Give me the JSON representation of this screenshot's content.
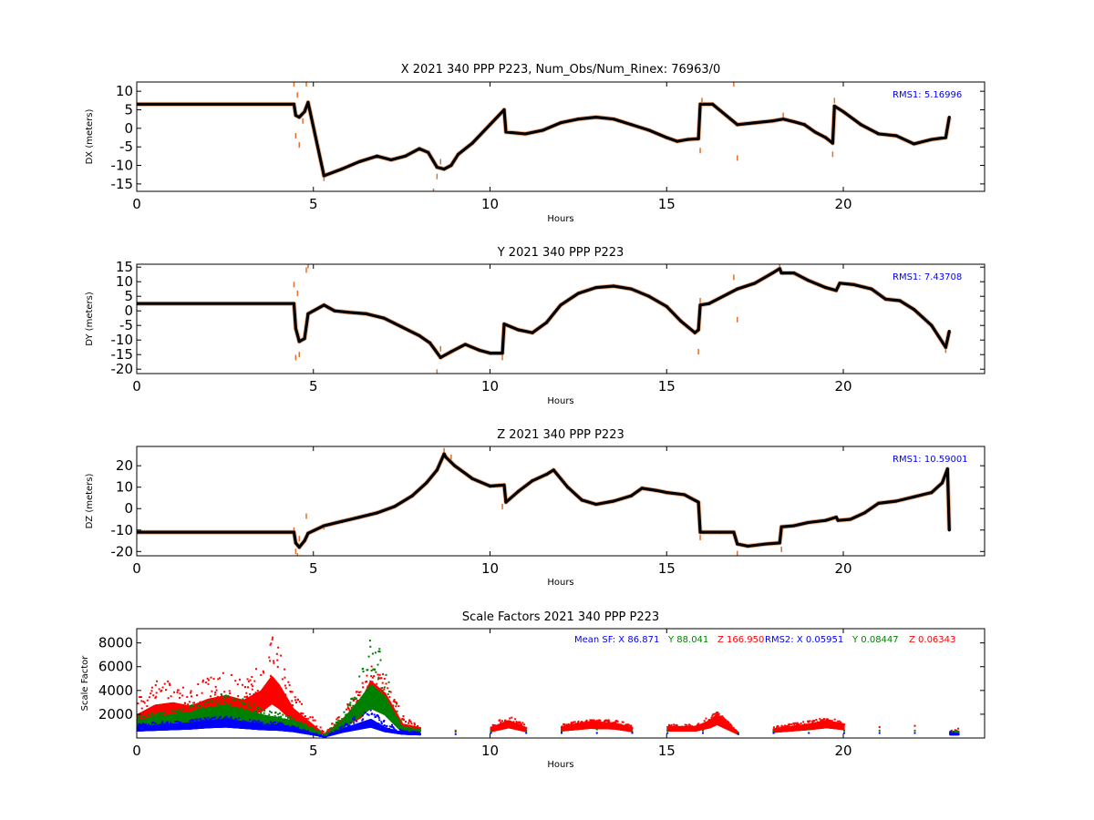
{
  "chart_data": [
    {
      "type": "scatter",
      "title": "X 2021 340 PPP  P223, Num_Obs/Num_Rinex: 76963/0",
      "xlabel": "Hours",
      "ylabel": "DX (meters)",
      "xlim": [
        0,
        24
      ],
      "ylim": [
        -17,
        12.5
      ],
      "xticks": [
        0,
        5,
        10,
        15,
        20
      ],
      "yticks": [
        10,
        5,
        0,
        -5,
        -10,
        -15
      ],
      "annotations": [
        {
          "text": "RMS1:  5.16996",
          "color": "#0000ff",
          "position": "top-right"
        }
      ],
      "series": [
        {
          "role": "fit",
          "color": "#000000",
          "x": [
            0.0,
            4.45,
            4.5,
            4.6,
            4.75,
            4.85,
            5.3,
            5.8,
            6.3,
            6.8,
            7.2,
            7.6,
            8.0,
            8.25,
            8.5,
            8.7,
            8.9,
            9.1,
            9.5,
            10.0,
            10.4,
            10.45,
            11.0,
            11.5,
            12.0,
            12.5,
            13.0,
            13.5,
            14.0,
            14.5,
            15.0,
            15.3,
            15.6,
            15.9,
            15.95,
            16.3,
            17.0,
            17.5,
            18.0,
            18.3,
            18.6,
            18.9,
            19.2,
            19.5,
            19.7,
            19.75,
            20.0,
            20.5,
            21.0,
            21.5,
            22.0,
            22.5,
            22.9,
            23.0
          ],
          "y": [
            6.5,
            6.5,
            3.5,
            3.0,
            4.5,
            7.0,
            -12.8,
            -11.0,
            -9.0,
            -7.5,
            -8.5,
            -7.5,
            -5.5,
            -6.5,
            -10.5,
            -11.0,
            -10.0,
            -7.0,
            -4.0,
            1.0,
            5.0,
            -1.0,
            -1.5,
            -0.5,
            1.5,
            2.5,
            3.0,
            2.5,
            1.0,
            -0.5,
            -2.5,
            -3.5,
            -3.0,
            -2.8,
            6.5,
            6.5,
            1.0,
            1.5,
            2.0,
            2.5,
            1.8,
            1.0,
            -1.0,
            -2.5,
            -4.0,
            6.0,
            4.5,
            1.0,
            -1.5,
            -2.0,
            -4.2,
            -3.0,
            -2.5,
            3.0
          ]
        },
        {
          "role": "obs",
          "color": "#e0702a",
          "x": [
            4.45,
            4.5,
            4.55,
            4.6,
            4.7,
            4.8,
            5.3,
            8.4,
            8.5,
            8.6,
            15.95,
            16.0,
            16.9,
            17.0,
            18.3,
            19.7,
            19.75
          ],
          "y": [
            12.0,
            -2.0,
            9.0,
            -4.5,
            2.0,
            12.0,
            -13.5,
            -17.0,
            -13.0,
            -9.0,
            -6.0,
            7.5,
            12.0,
            -8.0,
            3.5,
            -7.0,
            7.5
          ]
        }
      ]
    },
    {
      "type": "scatter",
      "title": "Y 2021 340 PPP  P223",
      "xlabel": "Hours",
      "ylabel": "DY (meters)",
      "xlim": [
        0,
        24
      ],
      "ylim": [
        -21.5,
        16
      ],
      "xticks": [
        0,
        5,
        10,
        15,
        20
      ],
      "yticks": [
        15,
        10,
        5,
        0,
        -5,
        -10,
        -15,
        -20
      ],
      "annotations": [
        {
          "text": "RMS1:  7.43708",
          "color": "#0000ff",
          "position": "top-right"
        }
      ],
      "series": [
        {
          "role": "fit",
          "color": "#000000",
          "x": [
            0.0,
            4.45,
            4.5,
            4.6,
            4.75,
            4.85,
            5.3,
            5.6,
            6.0,
            6.5,
            7.0,
            7.5,
            8.0,
            8.3,
            8.6,
            8.9,
            9.3,
            9.7,
            10.0,
            10.35,
            10.4,
            10.8,
            11.2,
            11.6,
            12.0,
            12.5,
            13.0,
            13.5,
            14.0,
            14.5,
            15.0,
            15.4,
            15.8,
            15.9,
            15.95,
            16.2,
            17.0,
            17.5,
            18.0,
            18.2,
            18.25,
            18.6,
            19.0,
            19.5,
            19.8,
            19.9,
            20.3,
            20.8,
            21.2,
            21.6,
            22.0,
            22.5,
            22.9,
            23.0
          ],
          "y": [
            2.5,
            2.5,
            -6.0,
            -10.5,
            -9.5,
            -1.0,
            2.0,
            0.0,
            -0.5,
            -1.0,
            -2.5,
            -5.5,
            -8.5,
            -11.0,
            -16.0,
            -14.0,
            -11.5,
            -13.5,
            -14.5,
            -14.5,
            -4.5,
            -6.5,
            -7.5,
            -4.0,
            2.0,
            6.0,
            8.0,
            8.5,
            7.5,
            5.0,
            1.5,
            -3.5,
            -7.5,
            -6.5,
            2.0,
            2.5,
            7.5,
            9.5,
            13.0,
            14.5,
            13.0,
            13.0,
            10.5,
            8.0,
            7.0,
            9.5,
            9.0,
            7.5,
            4.0,
            3.5,
            0.5,
            -5.0,
            -12.5,
            -7.0
          ]
        },
        {
          "role": "obs",
          "color": "#e0702a",
          "x": [
            4.45,
            4.5,
            4.55,
            4.6,
            4.8,
            4.85,
            8.5,
            8.6,
            10.35,
            15.9,
            15.95,
            16.9,
            17.0,
            18.2,
            22.9
          ],
          "y": [
            9.0,
            -16.0,
            6.0,
            -15.0,
            14.0,
            15.5,
            -21.0,
            -13.0,
            -16.0,
            -14.0,
            3.5,
            11.5,
            -3.0,
            15.0,
            -13.5
          ]
        }
      ]
    },
    {
      "type": "scatter",
      "title": "Z 2021 340 PPP  P223",
      "xlabel": "Hours",
      "ylabel": "DZ (meters)",
      "xlim": [
        0,
        24
      ],
      "ylim": [
        -22,
        29
      ],
      "xticks": [
        0,
        5,
        10,
        15,
        20
      ],
      "yticks": [
        20,
        10,
        0,
        -10,
        -20
      ],
      "annotations": [
        {
          "text": "RMS1: 10.59001",
          "color": "#0000ff",
          "position": "top-right"
        }
      ],
      "series": [
        {
          "role": "fit",
          "color": "#000000",
          "x": [
            0.0,
            4.45,
            4.5,
            4.6,
            4.75,
            4.85,
            5.3,
            5.8,
            6.3,
            6.8,
            7.3,
            7.8,
            8.2,
            8.5,
            8.7,
            8.75,
            9.0,
            9.5,
            10.0,
            10.4,
            10.45,
            10.8,
            11.2,
            11.6,
            11.8,
            12.2,
            12.6,
            13.0,
            13.5,
            14.0,
            14.3,
            14.7,
            15.0,
            15.5,
            15.9,
            15.95,
            16.5,
            16.9,
            17.0,
            17.3,
            17.8,
            18.2,
            18.25,
            18.6,
            19.0,
            19.5,
            19.8,
            19.85,
            20.2,
            20.6,
            21.0,
            21.5,
            22.0,
            22.5,
            22.8,
            22.95,
            23.0
          ],
          "y": [
            -11.0,
            -11.0,
            -16.0,
            -18.0,
            -15.0,
            -11.5,
            -8.0,
            -6.0,
            -4.0,
            -2.0,
            1.0,
            6.0,
            12.0,
            18.0,
            25.5,
            24.0,
            20.0,
            14.0,
            10.5,
            11.0,
            3.0,
            8.0,
            13.0,
            16.0,
            18.0,
            10.0,
            4.0,
            2.0,
            3.5,
            6.0,
            9.5,
            8.5,
            7.5,
            6.5,
            3.0,
            -11.0,
            -11.0,
            -11.0,
            -16.5,
            -17.5,
            -16.5,
            -16.0,
            -8.5,
            -8.0,
            -6.5,
            -5.5,
            -4.0,
            -5.5,
            -5.0,
            -2.0,
            2.5,
            3.5,
            5.5,
            7.5,
            12.0,
            18.5,
            -10.0
          ]
        },
        {
          "role": "obs",
          "color": "#e0702a",
          "x": [
            4.45,
            4.5,
            4.55,
            4.6,
            4.8,
            5.3,
            8.7,
            8.9,
            10.35,
            15.95,
            17.0,
            18.25
          ],
          "y": [
            -10.0,
            -20.0,
            -22.0,
            -14.0,
            -3.5,
            -8.5,
            27.0,
            24.0,
            1.0,
            -13.5,
            -21.0,
            -19.0
          ]
        }
      ]
    },
    {
      "type": "scatter",
      "title": "Scale Factors 2021 340 PPP  P223",
      "xlabel": "Hours",
      "ylabel": "Scale Factor",
      "xlim": [
        0,
        24
      ],
      "ylim": [
        0,
        9200
      ],
      "xticks": [
        0,
        5,
        10,
        15,
        20
      ],
      "yticks": [
        8000,
        6000,
        4000,
        2000
      ],
      "annotations": [
        {
          "text": "Mean SF: X  86.871",
          "color": "#0000ff",
          "position": "top-right"
        },
        {
          "text": "Y  88.041",
          "color": "#008000",
          "position": "top-right"
        },
        {
          "text": "Z 166.950",
          "color": "#ff0000",
          "position": "top-right"
        },
        {
          "text": "RMS2: X  0.05951",
          "color": "#0000ff",
          "position": "top-right"
        },
        {
          "text": "Y  0.08447",
          "color": "#008000",
          "position": "top-right"
        },
        {
          "text": "Z  0.06343",
          "color": "#ff0000",
          "position": "top-right"
        }
      ],
      "series": [
        {
          "name": "Z",
          "color": "#ff0000",
          "x": [
            0.0,
            0.5,
            1.0,
            1.5,
            2.0,
            2.5,
            3.0,
            3.5,
            3.8,
            4.0,
            4.4,
            5.3,
            5.8,
            6.3,
            6.6,
            7.0,
            7.5,
            8.0,
            9.0,
            10.0,
            10.5,
            11.0,
            12.0,
            12.8,
            13.5,
            14.0,
            15.0,
            15.8,
            16.2,
            16.4,
            17.0,
            18.0,
            18.5,
            19.0,
            19.5,
            20.0,
            21.0,
            22.0,
            23.0
          ],
          "y": [
            2000,
            2800,
            3000,
            2700,
            3300,
            3600,
            3200,
            4000,
            5200,
            4500,
            2500,
            300,
            1600,
            3000,
            4800,
            3800,
            1200,
            900,
            700,
            900,
            1500,
            900,
            1000,
            1400,
            1300,
            900,
            1000,
            1000,
            1500,
            2000,
            500,
            800,
            1000,
            1200,
            1500,
            1200,
            1000,
            1100,
            600
          ],
          "max": [
            3500,
            5400,
            4800,
            4300,
            5300,
            5600,
            5000,
            6500,
            8800,
            7700,
            4000,
            500,
            2500,
            4500,
            6500,
            5400,
            2000,
            1000,
            900,
            1200,
            2000,
            1200,
            1300,
            1600,
            1600,
            1200,
            1200,
            1200,
            2000,
            2300,
            700,
            1000,
            1300,
            1500,
            1800,
            1500,
            1300,
            1300,
            900
          ]
        },
        {
          "name": "Y",
          "color": "#008000",
          "x": [
            0.0,
            0.5,
            1.0,
            1.5,
            2.0,
            2.5,
            3.0,
            3.5,
            4.0,
            4.4,
            5.3,
            5.8,
            6.3,
            6.6,
            7.0,
            7.5,
            8.0,
            9.0,
            10.0,
            11.0,
            12.0,
            13.0,
            14.0,
            15.0,
            16.0,
            17.0,
            18.0,
            19.0,
            20.0,
            21.0,
            22.0,
            23.0
          ],
          "y": [
            1500,
            1800,
            2000,
            2200,
            2600,
            2800,
            2400,
            2000,
            1700,
            1500,
            200,
            1500,
            3300,
            4500,
            3500,
            800,
            700,
            600,
            700,
            700,
            600,
            800,
            600,
            700,
            700,
            500,
            600,
            800,
            700,
            700,
            700,
            500
          ],
          "max": [
            2000,
            2200,
            2500,
            2800,
            3500,
            3800,
            3400,
            2500,
            2200,
            1800,
            400,
            2000,
            5500,
            8800,
            7000,
            1000,
            900,
            800,
            900,
            900,
            800,
            1000,
            800,
            900,
            900,
            700,
            800,
            1000,
            900,
            900,
            900,
            700
          ]
        },
        {
          "name": "X",
          "color": "#0000ff",
          "x": [
            0.0,
            0.5,
            1.0,
            1.5,
            2.0,
            2.5,
            3.0,
            3.5,
            4.0,
            4.4,
            5.3,
            5.8,
            6.3,
            6.6,
            7.0,
            7.5,
            8.0,
            9.0,
            10.0,
            11.0,
            12.0,
            13.0,
            14.0,
            15.0,
            16.0,
            17.0,
            18.0,
            19.0,
            20.0,
            21.0,
            22.0,
            23.0
          ],
          "y": [
            1000,
            1100,
            1200,
            1300,
            1500,
            1600,
            1400,
            1200,
            1100,
            900,
            100,
            800,
            1300,
            1600,
            900,
            500,
            400,
            400,
            500,
            500,
            500,
            500,
            500,
            500,
            500,
            400,
            500,
            500,
            500,
            500,
            500,
            400
          ],
          "max": [
            1300,
            1400,
            1500,
            1600,
            1800,
            1900,
            1700,
            1500,
            1400,
            1100,
            200,
            1100,
            2200,
            2500,
            1500,
            700,
            600,
            600,
            700,
            700,
            700,
            700,
            700,
            700,
            700,
            600,
            700,
            700,
            700,
            700,
            700,
            600
          ]
        }
      ]
    }
  ],
  "colors": {
    "axes": "#000000",
    "rms": "#0000ff",
    "x": "#0000ff",
    "y": "#008000",
    "z": "#ff0000",
    "obs": "#e0702a",
    "fit": "#000000"
  }
}
